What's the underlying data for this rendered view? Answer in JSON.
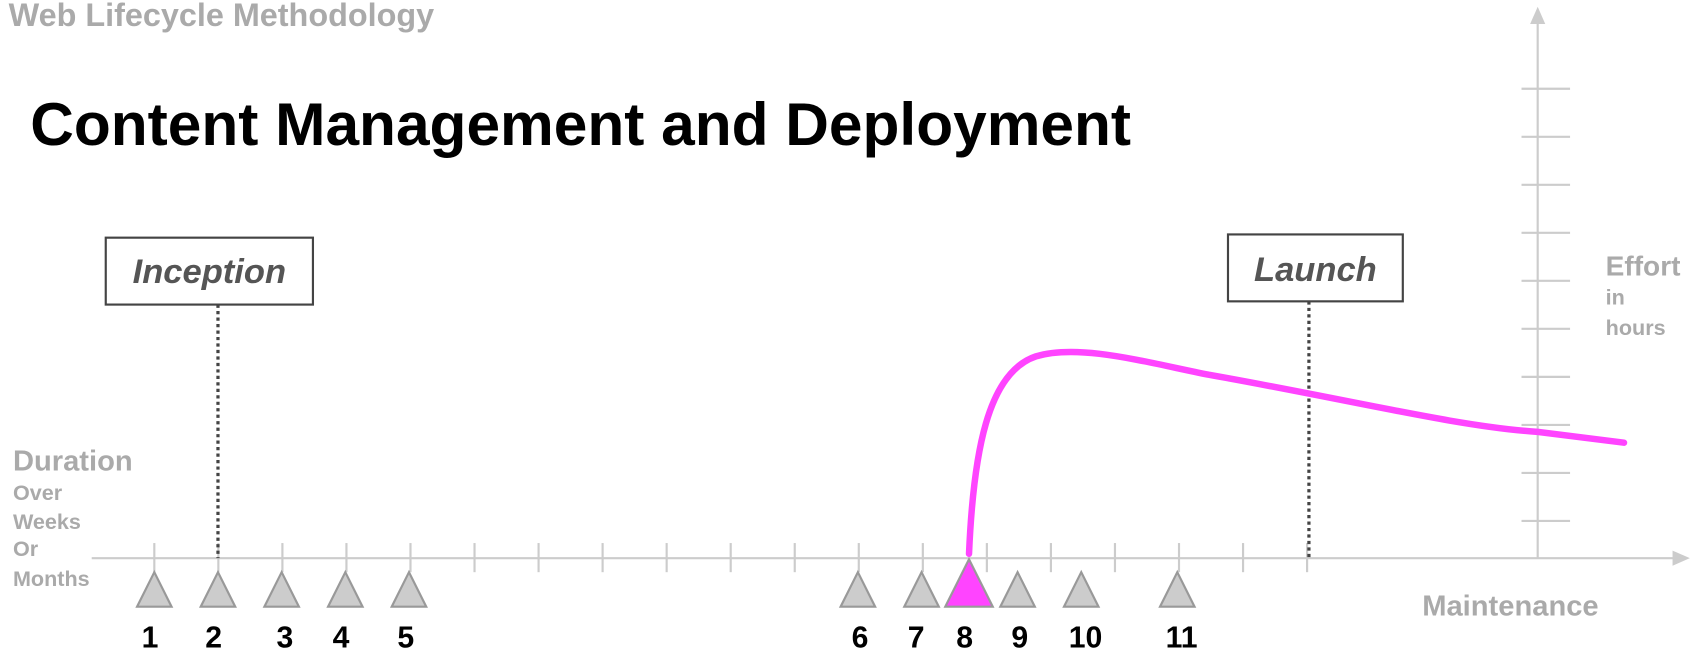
{
  "header": {
    "title": "Web Lifecycle Methodology"
  },
  "title": "Content Management and Deployment",
  "phases": {
    "start": "Inception",
    "launch": "Launch"
  },
  "y_axis": {
    "label": "Effort",
    "sub": [
      "in",
      "hours"
    ]
  },
  "x_axis": {
    "label": "Duration",
    "sub": [
      "Over",
      "Weeks",
      "Or",
      "Months"
    ],
    "end_label": "Maintenance"
  },
  "milestones": [
    "1",
    "2",
    "3",
    "4",
    "5",
    "6",
    "7",
    "8",
    "9",
    "10",
    "11"
  ]
}
